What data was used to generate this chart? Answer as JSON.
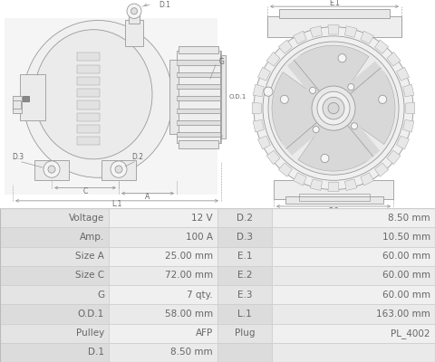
{
  "table_rows": [
    [
      "Voltage",
      "12 V",
      "D.2",
      "8.50 mm"
    ],
    [
      "Amp.",
      "100 A",
      "D.3",
      "10.50 mm"
    ],
    [
      "Size A",
      "25.00 mm",
      "E.1",
      "60.00 mm"
    ],
    [
      "Size C",
      "72.00 mm",
      "E.2",
      "60.00 mm"
    ],
    [
      "G",
      "7 qty.",
      "E.3",
      "60.00 mm"
    ],
    [
      "O.D.1",
      "58.00 mm",
      "L.1",
      "163.00 mm"
    ],
    [
      "Pulley",
      "AFP",
      "Plug",
      "PL_4002"
    ],
    [
      "D.1",
      "8.50 mm",
      "",
      ""
    ]
  ],
  "border_color": "#cccccc",
  "text_color": "#666666",
  "font_size": 7.5,
  "image_bg": "#ffffff",
  "lc": "#999999",
  "fc": "#f0f0f0",
  "fc2": "#e8e8e8"
}
